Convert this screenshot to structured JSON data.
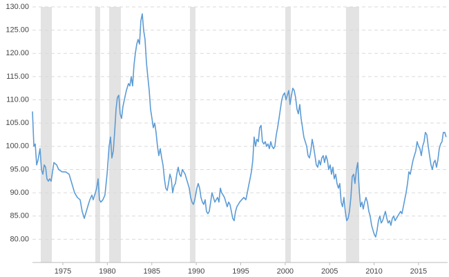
{
  "chart_data": {
    "type": "line",
    "color": "#5b9bd5",
    "recession_color": "#e3e3e3",
    "grid": true,
    "xlim": [
      1971.58,
      2018.27
    ],
    "ylim": [
      75,
      130
    ],
    "xticks": [
      1975,
      1980,
      1985,
      1990,
      1995,
      2000,
      2005,
      2010,
      2015
    ],
    "yticks": [
      {
        "value": 80,
        "label": "80.00"
      },
      {
        "value": 85,
        "label": "85.00"
      },
      {
        "value": 90,
        "label": "90.00"
      },
      {
        "value": 95,
        "label": "95.00"
      },
      {
        "value": 100,
        "label": "100.00"
      },
      {
        "value": 105,
        "label": "105.00"
      },
      {
        "value": 110,
        "label": "110.00"
      },
      {
        "value": 115,
        "label": "115.00"
      },
      {
        "value": 120,
        "label": "120.00"
      },
      {
        "value": 125,
        "label": "125.00"
      },
      {
        "value": 130,
        "label": "130.00"
      }
    ],
    "recessions": [
      [
        1972.51,
        1973.76
      ],
      [
        1978.65,
        1979.19
      ],
      [
        1980.2,
        1981.52
      ],
      [
        1989.29,
        1989.91
      ],
      [
        2000.01,
        2000.63
      ],
      [
        2006.84,
        2008.32
      ]
    ],
    "x": [
      1971.58,
      1971.74,
      1971.89,
      1972.05,
      1972.2,
      1972.43,
      1972.59,
      1972.75,
      1972.9,
      1973.06,
      1973.21,
      1973.37,
      1973.52,
      1973.68,
      1973.99,
      1974.3,
      1974.53,
      1974.92,
      1975.31,
      1975.7,
      1976.01,
      1976.32,
      1976.63,
      1976.94,
      1977.17,
      1977.41,
      1977.56,
      1977.79,
      1978.03,
      1978.26,
      1978.41,
      1978.65,
      1978.8,
      1978.96,
      1979.11,
      1979.27,
      1979.5,
      1979.73,
      1979.97,
      1980.2,
      1980.36,
      1980.51,
      1980.67,
      1980.82,
      1980.98,
      1981.13,
      1981.29,
      1981.44,
      1981.6,
      1981.75,
      1981.91,
      1982.14,
      1982.38,
      1982.53,
      1982.69,
      1982.84,
      1983.0,
      1983.15,
      1983.31,
      1983.46,
      1983.62,
      1983.77,
      1983.93,
      1984.08,
      1984.24,
      1984.4,
      1984.55,
      1984.71,
      1984.86,
      1985.02,
      1985.17,
      1985.33,
      1985.48,
      1985.64,
      1985.79,
      1985.95,
      1986.11,
      1986.26,
      1986.42,
      1986.57,
      1986.73,
      1986.88,
      1987.04,
      1987.19,
      1987.35,
      1987.5,
      1987.66,
      1987.81,
      1987.97,
      1988.13,
      1988.28,
      1988.44,
      1988.59,
      1988.75,
      1988.9,
      1989.06,
      1989.21,
      1989.37,
      1989.52,
      1989.68,
      1989.83,
      1990.07,
      1990.22,
      1990.38,
      1990.53,
      1990.69,
      1990.84,
      1991.0,
      1991.15,
      1991.31,
      1991.46,
      1991.62,
      1991.77,
      1991.93,
      1992.09,
      1992.24,
      1992.4,
      1992.55,
      1992.71,
      1992.86,
      1993.02,
      1993.17,
      1993.33,
      1993.48,
      1993.64,
      1993.79,
      1993.95,
      1994.1,
      1994.26,
      1994.42,
      1994.57,
      1994.73,
      1994.88,
      1995.11,
      1995.35,
      1995.58,
      1995.74,
      1995.89,
      1996.05,
      1996.2,
      1996.36,
      1996.51,
      1996.67,
      1996.82,
      1996.98,
      1997.13,
      1997.29,
      1997.44,
      1997.6,
      1997.76,
      1997.91,
      1998.07,
      1998.22,
      1998.38,
      1998.53,
      1998.69,
      1998.84,
      1999.0,
      1999.15,
      1999.31,
      1999.46,
      1999.62,
      1999.77,
      1999.93,
      2000.09,
      2000.24,
      2000.4,
      2000.55,
      2000.71,
      2000.86,
      2001.02,
      2001.17,
      2001.33,
      2001.48,
      2001.64,
      2001.79,
      2001.95,
      2002.1,
      2002.26,
      2002.42,
      2002.57,
      2002.73,
      2002.88,
      2003.04,
      2003.19,
      2003.35,
      2003.5,
      2003.66,
      2003.81,
      2003.97,
      2004.12,
      2004.28,
      2004.43,
      2004.59,
      2004.75,
      2004.9,
      2005.06,
      2005.21,
      2005.37,
      2005.52,
      2005.68,
      2005.83,
      2005.99,
      2006.14,
      2006.3,
      2006.45,
      2006.61,
      2006.76,
      2006.92,
      2007.08,
      2007.23,
      2007.39,
      2007.54,
      2007.7,
      2007.85,
      2008.01,
      2008.16,
      2008.32,
      2008.47,
      2008.63,
      2008.78,
      2008.94,
      2009.09,
      2009.25,
      2009.41,
      2009.56,
      2009.72,
      2009.87,
      2010.03,
      2010.18,
      2010.34,
      2010.49,
      2010.65,
      2010.8,
      2010.96,
      2011.11,
      2011.27,
      2011.43,
      2011.58,
      2011.74,
      2011.89,
      2012.05,
      2012.2,
      2012.36,
      2012.51,
      2012.67,
      2012.82,
      2012.98,
      2013.13,
      2013.29,
      2013.44,
      2013.6,
      2013.76,
      2013.91,
      2014.07,
      2014.22,
      2014.38,
      2014.53,
      2014.69,
      2014.84,
      2015.0,
      2015.15,
      2015.31,
      2015.46,
      2015.62,
      2015.77,
      2015.93,
      2016.09,
      2016.24,
      2016.4,
      2016.55,
      2016.71,
      2016.86,
      2017.02,
      2017.17,
      2017.33,
      2017.48,
      2017.64,
      2017.79,
      2017.95,
      2018.1
    ],
    "values": [
      107.5,
      100,
      100.5,
      96,
      97,
      99.5,
      95,
      94,
      96,
      95.5,
      93,
      92.5,
      93,
      92.5,
      96.5,
      96,
      95,
      94.5,
      94.5,
      94,
      92,
      90,
      89,
      88.5,
      86,
      84.5,
      85.5,
      87,
      88.5,
      89.5,
      88.5,
      90,
      91,
      93,
      88.5,
      88,
      88.5,
      89.5,
      94,
      100,
      102,
      97.5,
      99,
      103,
      108,
      110.5,
      111,
      107,
      106,
      108.5,
      110,
      112,
      113.5,
      113,
      115,
      113,
      117.5,
      120,
      122,
      123,
      122,
      127,
      128.5,
      125,
      123,
      118,
      115,
      112,
      108,
      106,
      104,
      105,
      103,
      100,
      98,
      99.5,
      97.5,
      96,
      93,
      91,
      90.5,
      92,
      94,
      93,
      90,
      91.5,
      92,
      94,
      95.5,
      94,
      93.5,
      95,
      94.5,
      94,
      93,
      92,
      91,
      89,
      88,
      87.5,
      88.5,
      91,
      92,
      91,
      89,
      88,
      87.5,
      88.5,
      86,
      85.5,
      86,
      88,
      90,
      89,
      88,
      88.5,
      89,
      88,
      91,
      90,
      89.5,
      89,
      88,
      87,
      88,
      87.5,
      86,
      84.5,
      84,
      86,
      87,
      87.5,
      88,
      88.5,
      89,
      88.5,
      90,
      91.5,
      93,
      94.5,
      97,
      102,
      100,
      101.5,
      101,
      104,
      104.5,
      101,
      100.5,
      101,
      100,
      100.5,
      99.5,
      101,
      100,
      99.5,
      100,
      102.5,
      104,
      106,
      108,
      110,
      111,
      111.5,
      110,
      111,
      112,
      109,
      111,
      112.5,
      112,
      110.5,
      108,
      107,
      109,
      106,
      104,
      102,
      101,
      100,
      98,
      97.5,
      99,
      101.5,
      100,
      98,
      96,
      95.5,
      97,
      96,
      97.5,
      98,
      96.5,
      98,
      97,
      95,
      96,
      94,
      95.5,
      93,
      94,
      92,
      91,
      92,
      88,
      87,
      89,
      86,
      84,
      84.5,
      86,
      89,
      93.5,
      94,
      92,
      95,
      96.5,
      91,
      87,
      88,
      86.5,
      88,
      89,
      88,
      86,
      85,
      83,
      82,
      81,
      80.5,
      82,
      84,
      85,
      83.5,
      84,
      85,
      86,
      84.5,
      83.5,
      84,
      83,
      84.5,
      85,
      84,
      84.5,
      85,
      85.5,
      86,
      85.5,
      87,
      88.5,
      90,
      92,
      94.5,
      94,
      95.5,
      97,
      98,
      99,
      101,
      100,
      99.5,
      98,
      100,
      101,
      103,
      102.5,
      100,
      98,
      96,
      95,
      96.5,
      97,
      95.5,
      97,
      99.5,
      100.5,
      101,
      103,
      103,
      102
    ]
  }
}
